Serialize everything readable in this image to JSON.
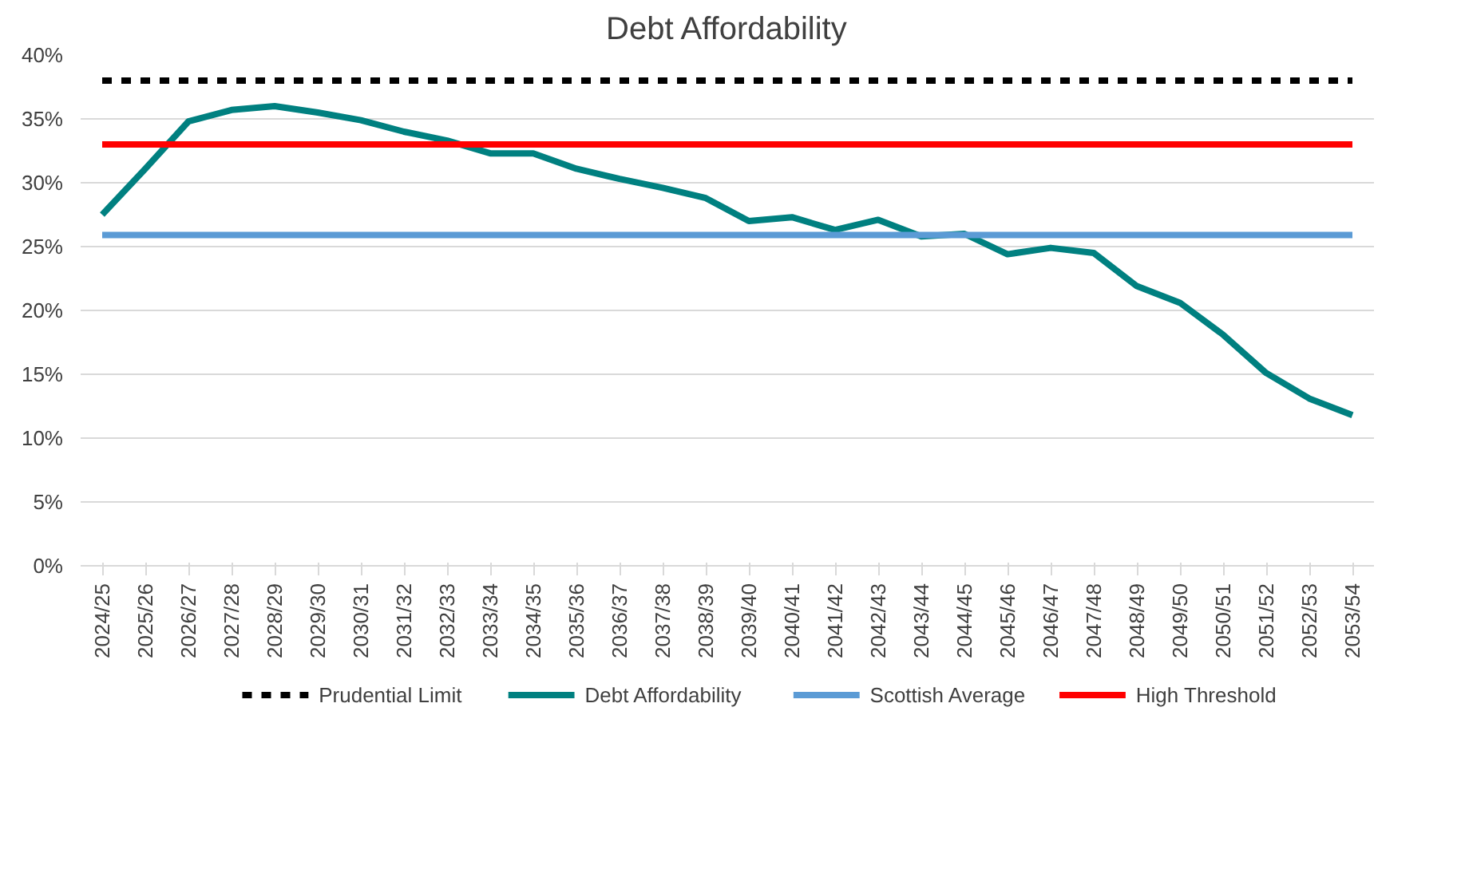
{
  "chart_data": {
    "type": "line",
    "title": "Debt Affordability",
    "categories": [
      "2024/25",
      "2025/26",
      "2026/27",
      "2027/28",
      "2028/29",
      "2029/30",
      "2030/31",
      "2031/32",
      "2032/33",
      "2033/34",
      "2034/35",
      "2035/36",
      "2036/37",
      "2037/38",
      "2038/39",
      "2039/40",
      "2040/41",
      "2041/42",
      "2042/43",
      "2043/44",
      "2044/45",
      "2045/46",
      "2046/47",
      "2047/48",
      "2048/49",
      "2049/50",
      "2050/51",
      "2051/52",
      "2052/53",
      "2053/54"
    ],
    "series": [
      {
        "name": "Prudential Limit",
        "color": "#000000",
        "line_style": "dashed",
        "values": [
          38,
          38,
          38,
          38,
          38,
          38,
          38,
          38,
          38,
          38,
          38,
          38,
          38,
          38,
          38,
          38,
          38,
          38,
          38,
          38,
          38,
          38,
          38,
          38,
          38,
          38,
          38,
          38,
          38,
          38
        ]
      },
      {
        "name": "Debt Affordability",
        "color": "#008080",
        "line_style": "solid",
        "values": [
          27.5,
          31.1,
          34.8,
          35.7,
          36.0,
          35.5,
          34.9,
          34.0,
          33.3,
          32.3,
          32.3,
          31.1,
          30.3,
          29.6,
          28.8,
          27.0,
          27.3,
          26.3,
          27.1,
          25.8,
          26.0,
          24.4,
          24.9,
          24.5,
          21.9,
          20.6,
          18.1,
          15.1,
          13.1,
          11.8
        ]
      },
      {
        "name": "Scottish Average",
        "color": "#5b9bd5",
        "line_style": "solid",
        "values": [
          25.9,
          25.9,
          25.9,
          25.9,
          25.9,
          25.9,
          25.9,
          25.9,
          25.9,
          25.9,
          25.9,
          25.9,
          25.9,
          25.9,
          25.9,
          25.9,
          25.9,
          25.9,
          25.9,
          25.9,
          25.9,
          25.9,
          25.9,
          25.9,
          25.9,
          25.9,
          25.9,
          25.9,
          25.9,
          25.9
        ]
      },
      {
        "name": "High Threshold",
        "color": "#ff0000",
        "line_style": "solid",
        "values": [
          33,
          33,
          33,
          33,
          33,
          33,
          33,
          33,
          33,
          33,
          33,
          33,
          33,
          33,
          33,
          33,
          33,
          33,
          33,
          33,
          33,
          33,
          33,
          33,
          33,
          33,
          33,
          33,
          33,
          33
        ]
      }
    ],
    "ylim": [
      0,
      40
    ],
    "yticks": [
      {
        "value": 0,
        "label": "0%"
      },
      {
        "value": 5,
        "label": "5%"
      },
      {
        "value": 10,
        "label": "10%"
      },
      {
        "value": 15,
        "label": "15%"
      },
      {
        "value": 20,
        "label": "20%"
      },
      {
        "value": 25,
        "label": "25%"
      },
      {
        "value": 30,
        "label": "30%"
      },
      {
        "value": 35,
        "label": "35%"
      },
      {
        "value": 40,
        "label": "40%"
      }
    ],
    "grid": "y",
    "legend": "bottom",
    "marker": "none"
  }
}
